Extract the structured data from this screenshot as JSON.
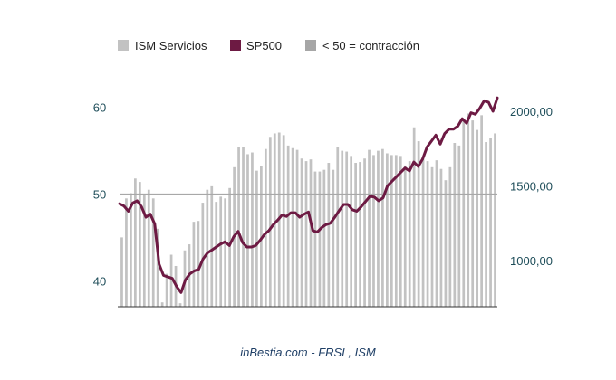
{
  "chart_data": {
    "type": "bar",
    "legend": [
      {
        "label": "ISM Servicios",
        "color": "#c2c2c2"
      },
      {
        "label": "SP500",
        "color": "#6d1a43"
      },
      {
        "label": "< 50 = contracción",
        "color": "#a6a6a6"
      }
    ],
    "legend_position": "top",
    "source": "inBestia.com - FRSL, ISM",
    "grid": false,
    "threshold": 50,
    "left_axis": {
      "ylim": [
        37,
        63
      ],
      "ticks": [
        40,
        50,
        60
      ]
    },
    "right_axis": {
      "ylim": [
        690,
        2200
      ],
      "ticks": [
        "1000,00",
        "1500,00",
        "2000,00"
      ],
      "tick_values": [
        1000,
        1500,
        2000
      ]
    },
    "series": [
      {
        "name": "ISM Servicios",
        "axis": "left",
        "values": [
          45.0,
          49.5,
          50.1,
          51.8,
          51.4,
          50.0,
          50.5,
          49.5,
          46.0,
          37.5,
          40.8,
          43.0,
          41.7,
          37.4,
          43.5,
          44.2,
          46.8,
          46.9,
          49.0,
          50.5,
          50.9,
          49.1,
          49.7,
          49.5,
          50.7,
          53.1,
          55.4,
          55.4,
          54.6,
          54.8,
          52.7,
          53.2,
          55.2,
          56.6,
          57.0,
          57.1,
          56.8,
          55.6,
          55.3,
          55.1,
          54.1,
          53.8,
          54.0,
          52.6,
          52.6,
          52.8,
          53.6,
          52.8,
          55.4,
          55.0,
          54.9,
          54.4,
          53.6,
          53.7,
          54.1,
          55.1,
          54.5,
          55.0,
          55.2,
          54.7,
          54.5,
          54.5,
          54.4,
          53.3,
          53.8,
          57.7,
          56.1,
          54.0,
          53.8,
          53.1,
          53.9,
          52.9,
          51.6,
          53.1,
          55.9,
          55.6,
          58.7,
          59.3,
          58.5,
          57.4,
          59.1,
          56.0,
          56.5,
          57.0
        ]
      },
      {
        "name": "SP500",
        "axis": "right",
        "values": [
          1380,
          1365,
          1330,
          1385,
          1400,
          1360,
          1290,
          1310,
          1245,
          975,
          900,
          890,
          880,
          825,
          785,
          870,
          910,
          930,
          940,
          1010,
          1050,
          1070,
          1090,
          1110,
          1125,
          1100,
          1160,
          1195,
          1120,
          1090,
          1090,
          1100,
          1135,
          1175,
          1200,
          1240,
          1270,
          1305,
          1295,
          1320,
          1320,
          1290,
          1310,
          1325,
          1200,
          1190,
          1220,
          1240,
          1250,
          1290,
          1335,
          1375,
          1375,
          1340,
          1330,
          1360,
          1395,
          1430,
          1425,
          1400,
          1420,
          1500,
          1530,
          1560,
          1590,
          1620,
          1600,
          1660,
          1630,
          1680,
          1760,
          1800,
          1840,
          1780,
          1850,
          1880,
          1880,
          1900,
          1950,
          1920,
          1990,
          1980,
          2020,
          2070,
          2060,
          2000,
          2090
        ]
      }
    ]
  }
}
